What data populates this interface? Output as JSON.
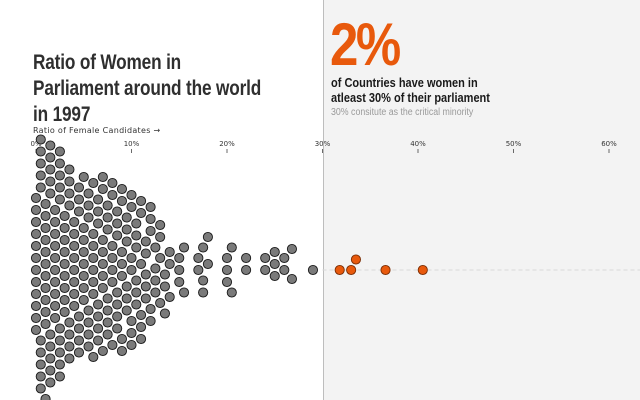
{
  "page": {
    "title": "Ratio of Women in Parliament around the world in 1997",
    "big_stat": "2%",
    "headline": "of Countries have women in atleast 30% of their parliament",
    "note": "30% consitute as the critical minority",
    "axis_title": "Ratio of Female Candidates →"
  },
  "colors": {
    "below": "#7a7a7a",
    "above": "#e8590c",
    "accent": "#e8590c",
    "shade": "#f3f3f3"
  },
  "chart_data": {
    "type": "scatter",
    "subtype": "beeswarm",
    "title": "Ratio of Women in Parliament around the world in 1997",
    "xlabel": "Ratio of Female Candidates →",
    "xlim": [
      0,
      60
    ],
    "x_ticks": [
      "0%",
      "10%",
      "20%",
      "30%",
      "40%",
      "50%",
      "60%"
    ],
    "threshold": 30,
    "legend": "none",
    "grid": false,
    "values": [
      0,
      0,
      0,
      0,
      0,
      0,
      0,
      0,
      0,
      0,
      0,
      0,
      0.5,
      0.5,
      0.5,
      0.5,
      0.5,
      0.5,
      0.5,
      0.5,
      0.5,
      0.5,
      1,
      1,
      1,
      1,
      1,
      1,
      1,
      1,
      1,
      1,
      1,
      1,
      1.5,
      1.5,
      1.5,
      1.5,
      1.5,
      1.5,
      1.5,
      1.5,
      1.5,
      1.5,
      2,
      2,
      2,
      2,
      2,
      2,
      2,
      2,
      2,
      2,
      2.5,
      2.5,
      2.5,
      2.5,
      2.5,
      2.5,
      2.5,
      2.5,
      2.5,
      2.5,
      3,
      3,
      3,
      3,
      3,
      3,
      3,
      3,
      3,
      3.5,
      3.5,
      3.5,
      3.5,
      3.5,
      3.5,
      3.5,
      3.5,
      4,
      4,
      4,
      4,
      4,
      4,
      4,
      4,
      4.5,
      4.5,
      4.5,
      4.5,
      4.5,
      4.5,
      4.5,
      5,
      5,
      5,
      5,
      5,
      5,
      5,
      5,
      5.5,
      5.5,
      5.5,
      5.5,
      5.5,
      5.5,
      5.5,
      6,
      6,
      6,
      6,
      6,
      6,
      6,
      6,
      6.5,
      6.5,
      6.5,
      6.5,
      6.5,
      6.5,
      6.5,
      7,
      7,
      7,
      7,
      7,
      7,
      7,
      7,
      7.5,
      7.5,
      7.5,
      7.5,
      7.5,
      7.5,
      7.5,
      8,
      8,
      8,
      8,
      8,
      8,
      8,
      8.5,
      8.5,
      8.5,
      8.5,
      8.5,
      8.5,
      8.5,
      9,
      9,
      9,
      9,
      9,
      9,
      9,
      9.5,
      9.5,
      9.5,
      9.5,
      9.5,
      9.5,
      10,
      10,
      10,
      10,
      10,
      10,
      10,
      10.5,
      10.5,
      10.5,
      10.5,
      10.5,
      10.5,
      11,
      11,
      11,
      11,
      11,
      11,
      11.5,
      11.5,
      11.5,
      11.5,
      11.5,
      12,
      12,
      12,
      12,
      12,
      12.5,
      12.5,
      12.5,
      12.5,
      13,
      13,
      13,
      13,
      13.5,
      13.5,
      13.5,
      14,
      14,
      14,
      15,
      15,
      15,
      15.5,
      15.5,
      17,
      17,
      17.5,
      17.5,
      17.5,
      18,
      18,
      20,
      20,
      20,
      20.5,
      20.5,
      22,
      22,
      24,
      24,
      25,
      25,
      25,
      26,
      26,
      26.8,
      26.8,
      29,
      31.8,
      33,
      33.5,
      36.6,
      40.5
    ]
  }
}
